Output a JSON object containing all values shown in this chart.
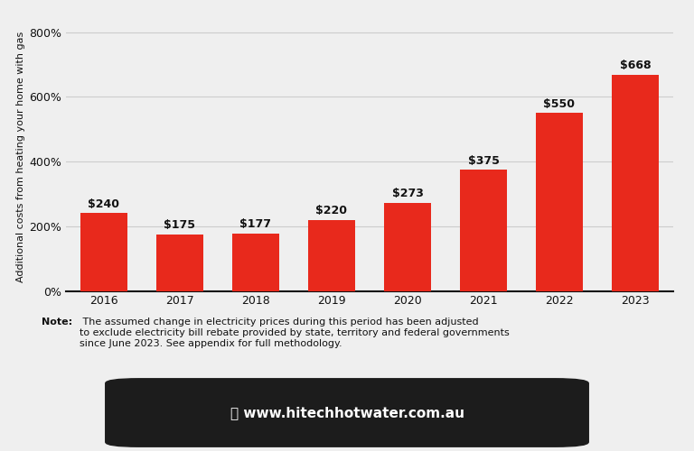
{
  "categories": [
    "2016",
    "2017",
    "2018",
    "2019",
    "2020",
    "2021",
    "2022",
    "2023"
  ],
  "values": [
    240,
    175,
    177,
    220,
    273,
    375,
    550,
    668
  ],
  "bar_color": "#E8291C",
  "background_color": "#EFEFEF",
  "ylabel": "Additional costs from heating your home with gas",
  "yticks": [
    0,
    200,
    400,
    600,
    800
  ],
  "ytick_labels": [
    "0%",
    "200%",
    "400%",
    "600%",
    "800%"
  ],
  "ylim": [
    0,
    830
  ],
  "grid_color": "#CCCCCC",
  "note_bold": "Note:",
  "note_text": " The assumed change in electricity prices during this period has been adjusted\nto exclude electricity bill rebate provided by state, territory and federal governments\nsince June 2023. See appendix for full methodology.",
  "footer_bg": "#1C1C1C",
  "footer_text": " www.hitechhotwater.com.au",
  "footer_text_color": "#FFFFFF",
  "label_fontsize": 9,
  "tick_fontsize": 9,
  "ylabel_fontsize": 8,
  "note_fontsize": 8,
  "footer_fontsize": 11
}
